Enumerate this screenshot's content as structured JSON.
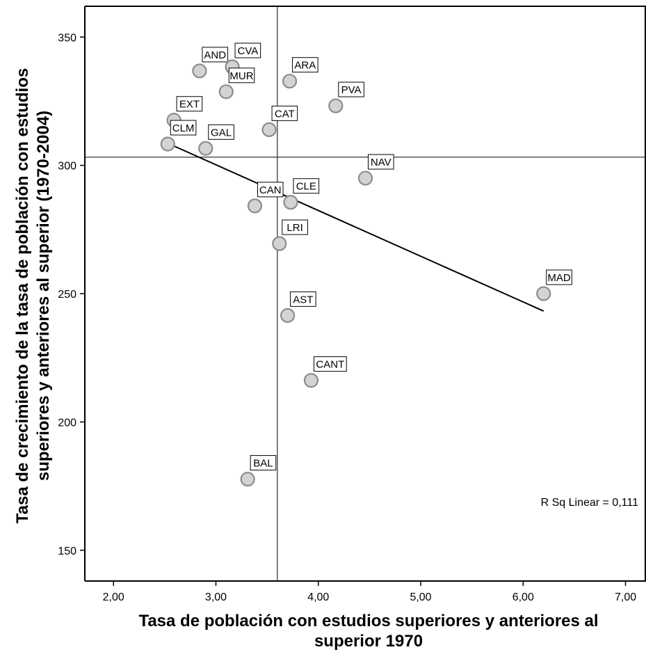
{
  "chart_data": {
    "type": "scatter",
    "xlabel": "Tasa de población con estudios superiores y anteriores al superior 1970",
    "ylabel": "Tasa de crecimiento de la tasa de población con estudios superiores y anteriores al superior (1970-2004)",
    "xlim": [
      1.72,
      7.2
    ],
    "ylim": [
      138,
      362
    ],
    "x_ticks": [
      2,
      3,
      4,
      5,
      6,
      7
    ],
    "x_tick_labels": [
      "2,00",
      "3,00",
      "4,00",
      "5,00",
      "6,00",
      "7,00"
    ],
    "y_ticks": [
      150,
      200,
      250,
      300,
      350
    ],
    "y_tick_labels": [
      "150",
      "200",
      "250",
      "300",
      "350"
    ],
    "ref_lines": {
      "x": 3.6,
      "y": 303.2
    },
    "fit_line": {
      "x": [
        2.53,
        6.2
      ],
      "y": [
        308.6,
        243.2
      ]
    },
    "annotation": "R Sq Linear = 0,111",
    "points": [
      {
        "label": "AND",
        "x": 2.84,
        "y": 336.8
      },
      {
        "label": "CVA",
        "x": 3.16,
        "y": 338.4
      },
      {
        "label": "ARA",
        "x": 3.72,
        "y": 332.8
      },
      {
        "label": "MUR",
        "x": 3.1,
        "y": 328.7
      },
      {
        "label": "PVA",
        "x": 4.17,
        "y": 323.2
      },
      {
        "label": "EXT",
        "x": 2.59,
        "y": 317.6
      },
      {
        "label": "CAT",
        "x": 3.52,
        "y": 313.9
      },
      {
        "label": "CLM",
        "x": 2.53,
        "y": 308.3
      },
      {
        "label": "GAL",
        "x": 2.9,
        "y": 306.6
      },
      {
        "label": "NAV",
        "x": 4.46,
        "y": 295.0
      },
      {
        "label": "CLE",
        "x": 3.73,
        "y": 285.6
      },
      {
        "label": "CAN",
        "x": 3.38,
        "y": 284.2
      },
      {
        "label": "LRI",
        "x": 3.62,
        "y": 269.5
      },
      {
        "label": "MAD",
        "x": 6.2,
        "y": 250.0
      },
      {
        "label": "AST",
        "x": 3.7,
        "y": 241.5
      },
      {
        "label": "CANT",
        "x": 3.93,
        "y": 216.2
      },
      {
        "label": "BAL",
        "x": 3.31,
        "y": 177.7
      }
    ]
  },
  "colors": {
    "point_fill": "#d3d3d3",
    "point_stroke": "#8c8c8c",
    "line": "#000000",
    "background": "#ffffff"
  }
}
